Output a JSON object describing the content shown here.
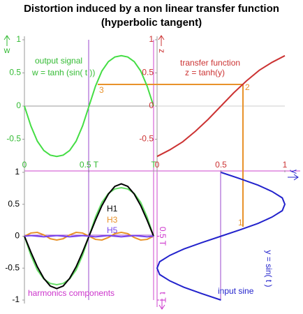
{
  "title": "Distortion induced by a non linear transfer function",
  "subtitle": "(hyperbolic tangent)",
  "points": [
    "1",
    "2",
    "3"
  ],
  "chart_data": [
    {
      "type": "line",
      "title": "output signal",
      "subtitle": "w = tanh (sin( t ))",
      "ylabel": "w",
      "x": [
        0,
        0.05,
        0.1,
        0.15,
        0.2,
        0.25,
        0.3,
        0.35,
        0.4,
        0.45,
        0.5,
        0.55,
        0.6,
        0.65,
        0.7,
        0.75,
        0.8,
        0.85,
        0.9,
        0.95,
        1
      ],
      "series": [
        {
          "color": "#44dd44",
          "values": [
            0,
            -0.3,
            -0.53,
            -0.67,
            -0.74,
            -0.76,
            -0.74,
            -0.67,
            -0.53,
            -0.3,
            0,
            0.3,
            0.53,
            0.67,
            0.74,
            0.76,
            0.74,
            0.67,
            0.53,
            0.3,
            0
          ]
        }
      ],
      "xlim": [
        0,
        1
      ],
      "ylim": [
        -1,
        1
      ],
      "xticks": [
        0,
        {
          "value": 0.5,
          "label": "0.5 T"
        },
        {
          "value": 1,
          "label": "T"
        }
      ],
      "yticks": [
        -0.5,
        0,
        0.5,
        1
      ],
      "color": "#33bb33"
    },
    {
      "type": "line",
      "title": "transfer function",
      "subtitle": "z = tanh(y)",
      "ylabel": "z",
      "xlabel": "y",
      "x": [
        0,
        0.1,
        0.2,
        0.3,
        0.4,
        0.5,
        0.6,
        0.7,
        0.8,
        0.9,
        1
      ],
      "series": [
        {
          "color": "#cc3333",
          "values": [
            -0.76,
            -0.66,
            -0.54,
            -0.38,
            -0.2,
            0,
            0.2,
            0.38,
            0.54,
            0.66,
            0.76
          ]
        }
      ],
      "xlim": [
        0,
        1
      ],
      "ylim": [
        -1,
        1
      ],
      "xticks": [
        0,
        0.5,
        1
      ],
      "yticks": [
        -0.5,
        0,
        0.5,
        1
      ],
      "color": "#cc3333"
    },
    {
      "type": "line",
      "title": "harmonics components",
      "x": [
        0,
        0.05,
        0.1,
        0.15,
        0.2,
        0.25,
        0.3,
        0.35,
        0.4,
        0.45,
        0.5,
        0.55,
        0.6,
        0.65,
        0.7,
        0.75,
        0.8,
        0.85,
        0.9,
        0.95,
        1
      ],
      "series": [
        {
          "color": "#66dd66",
          "values": [
            0,
            -0.3,
            -0.53,
            -0.67,
            -0.74,
            -0.76,
            -0.74,
            -0.67,
            -0.53,
            -0.3,
            0,
            0.3,
            0.53,
            0.67,
            0.74,
            0.76,
            0.74,
            0.67,
            0.53,
            0.3,
            0
          ]
        },
        {
          "name": "H1",
          "color": "#000000",
          "values": [
            0,
            -0.25,
            -0.48,
            -0.66,
            -0.78,
            -0.82,
            -0.78,
            -0.66,
            -0.48,
            -0.25,
            0,
            0.25,
            0.48,
            0.66,
            0.78,
            0.82,
            0.78,
            0.66,
            0.48,
            0.25,
            0
          ]
        },
        {
          "name": "H3",
          "color": "#e8922a",
          "values": [
            0,
            0.05,
            0.06,
            0.02,
            -0.04,
            -0.06,
            -0.04,
            0.02,
            0.06,
            0.05,
            0,
            -0.05,
            -0.06,
            -0.02,
            0.04,
            0.06,
            0.04,
            -0.02,
            -0.06,
            -0.05,
            0
          ]
        },
        {
          "name": "H5",
          "color": "#7744ee",
          "values": [
            0,
            0.01,
            0,
            -0.01,
            0,
            0.01,
            0,
            -0.01,
            0,
            0.01,
            0,
            -0.01,
            0,
            0.01,
            0,
            -0.01,
            0,
            0.01,
            0,
            -0.01,
            0
          ]
        }
      ],
      "xlim": [
        0,
        1
      ],
      "ylim": [
        -1,
        1
      ],
      "yticks": [
        -1,
        -0.5,
        0,
        0.5,
        1
      ],
      "color": "#000000"
    },
    {
      "type": "line",
      "orientation": "vertical",
      "title": "input sine",
      "subtitle": "y = sin( t )",
      "tlabel": "t",
      "x": [
        0,
        0.05,
        0.1,
        0.15,
        0.2,
        0.25,
        0.3,
        0.35,
        0.4,
        0.45,
        0.5,
        0.55,
        0.6,
        0.65,
        0.7,
        0.75,
        0.8,
        0.85,
        0.9,
        0.95,
        1
      ],
      "series": [
        {
          "color": "#2222cc",
          "values": [
            0.5,
            0.65,
            0.79,
            0.9,
            0.98,
            1,
            0.98,
            0.9,
            0.79,
            0.65,
            0.5,
            0.35,
            0.21,
            0.1,
            0.02,
            0,
            0.02,
            0.1,
            0.21,
            0.35,
            0.5
          ]
        }
      ],
      "xlim": [
        0,
        1
      ],
      "ylim": [
        0,
        1
      ],
      "tticks": [
        {
          "value": 0.5,
          "label": "0.5 T"
        },
        {
          "value": 1,
          "label": "T"
        }
      ],
      "color": "#cc33cc"
    }
  ]
}
